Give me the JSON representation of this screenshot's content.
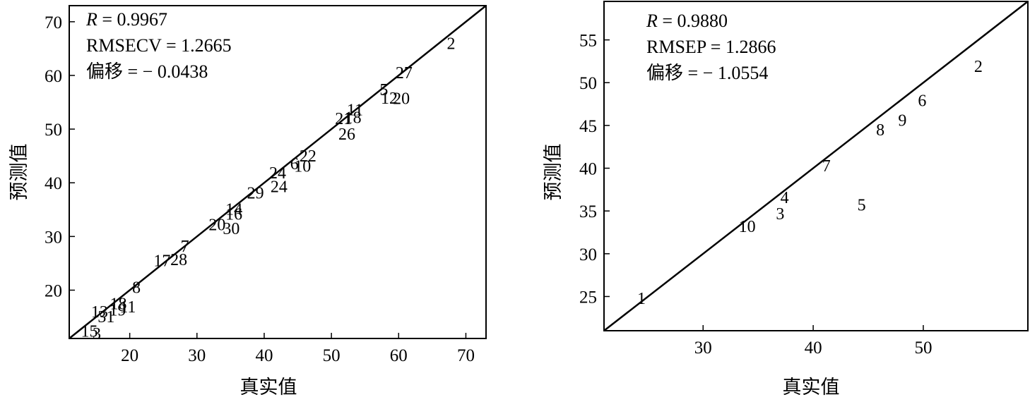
{
  "chart_data": [
    {
      "type": "scatter",
      "xlabel": "真实值",
      "ylabel": "预测值",
      "xlim": [
        11,
        73
      ],
      "ylim": [
        11,
        73
      ],
      "x_ticks": [
        20,
        30,
        40,
        50,
        60,
        70
      ],
      "y_ticks": [
        20,
        30,
        40,
        50,
        60,
        70
      ],
      "stats": [
        {
          "italic": "R",
          "text": " = 0.9967"
        },
        {
          "italic": "",
          "text": "RMSECV = 1.2665"
        },
        {
          "italic": "",
          "text": "偏移 = − 0.0438"
        }
      ],
      "fit_line": {
        "x": [
          11,
          73
        ],
        "y": [
          11,
          73
        ]
      },
      "points": [
        {
          "label": "2",
          "x": 67.8,
          "y": 66.0
        },
        {
          "label": "27",
          "x": 60.8,
          "y": 60.5
        },
        {
          "label": "5",
          "x": 57.8,
          "y": 57.4
        },
        {
          "label": "12",
          "x": 58.6,
          "y": 55.8
        },
        {
          "label": "20",
          "x": 60.4,
          "y": 55.7
        },
        {
          "label": "11",
          "x": 53.5,
          "y": 53.6
        },
        {
          "label": "21",
          "x": 51.8,
          "y": 52.0
        },
        {
          "label": "18",
          "x": 53.2,
          "y": 52.2
        },
        {
          "label": "26",
          "x": 52.3,
          "y": 49.1
        },
        {
          "label": "22",
          "x": 46.5,
          "y": 45.0
        },
        {
          "label": "6",
          "x": 44.5,
          "y": 43.6
        },
        {
          "label": "10",
          "x": 45.7,
          "y": 43.1
        },
        {
          "label": "24",
          "x": 42.0,
          "y": 41.9
        },
        {
          "label": "24",
          "x": 42.2,
          "y": 39.3
        },
        {
          "label": "29",
          "x": 38.7,
          "y": 38.1
        },
        {
          "label": "14",
          "x": 35.5,
          "y": 35.1
        },
        {
          "label": "16",
          "x": 35.5,
          "y": 34.2
        },
        {
          "label": "20",
          "x": 33.0,
          "y": 32.2
        },
        {
          "label": "30",
          "x": 35.1,
          "y": 31.5
        },
        {
          "label": "7",
          "x": 28.2,
          "y": 28.2
        },
        {
          "label": "17",
          "x": 24.8,
          "y": 25.5
        },
        {
          "label": "28",
          "x": 27.3,
          "y": 25.7
        },
        {
          "label": "8",
          "x": 21.0,
          "y": 20.5
        },
        {
          "label": "18",
          "x": 18.3,
          "y": 17.5
        },
        {
          "label": "11",
          "x": 19.7,
          "y": 16.9
        },
        {
          "label": "13",
          "x": 15.5,
          "y": 16.0
        },
        {
          "label": "19",
          "x": 18.2,
          "y": 16.3
        },
        {
          "label": "31",
          "x": 16.5,
          "y": 15.1
        },
        {
          "label": "15",
          "x": 14.0,
          "y": 12.4
        },
        {
          "label": "3",
          "x": 15.1,
          "y": 11.9
        }
      ]
    },
    {
      "type": "scatter",
      "xlabel": "真实值",
      "ylabel": "预测值",
      "xlim": [
        21,
        59.5
      ],
      "ylim": [
        21,
        59.5
      ],
      "x_ticks": [
        30,
        40,
        50
      ],
      "y_ticks": [
        25,
        30,
        35,
        40,
        45,
        50,
        55
      ],
      "stats": [
        {
          "italic": "R",
          "text": " = 0.9880"
        },
        {
          "italic": "",
          "text": "RMSEP = 1.2866"
        },
        {
          "italic": "",
          "text": "偏移 = − 1.0554"
        }
      ],
      "fit_line": {
        "x": [
          21,
          59.5
        ],
        "y": [
          21,
          59.5
        ]
      },
      "points": [
        {
          "label": "2",
          "x": 55.0,
          "y": 51.9
        },
        {
          "label": "6",
          "x": 49.9,
          "y": 47.9
        },
        {
          "label": "9",
          "x": 48.1,
          "y": 45.6
        },
        {
          "label": "8",
          "x": 46.1,
          "y": 44.5
        },
        {
          "label": "7",
          "x": 41.2,
          "y": 40.3
        },
        {
          "label": "4",
          "x": 37.4,
          "y": 36.6
        },
        {
          "label": "3",
          "x": 37.0,
          "y": 34.7
        },
        {
          "label": "5",
          "x": 44.4,
          "y": 35.7
        },
        {
          "label": "10",
          "x": 34.0,
          "y": 33.2
        },
        {
          "label": "1",
          "x": 24.4,
          "y": 24.8
        }
      ]
    }
  ]
}
